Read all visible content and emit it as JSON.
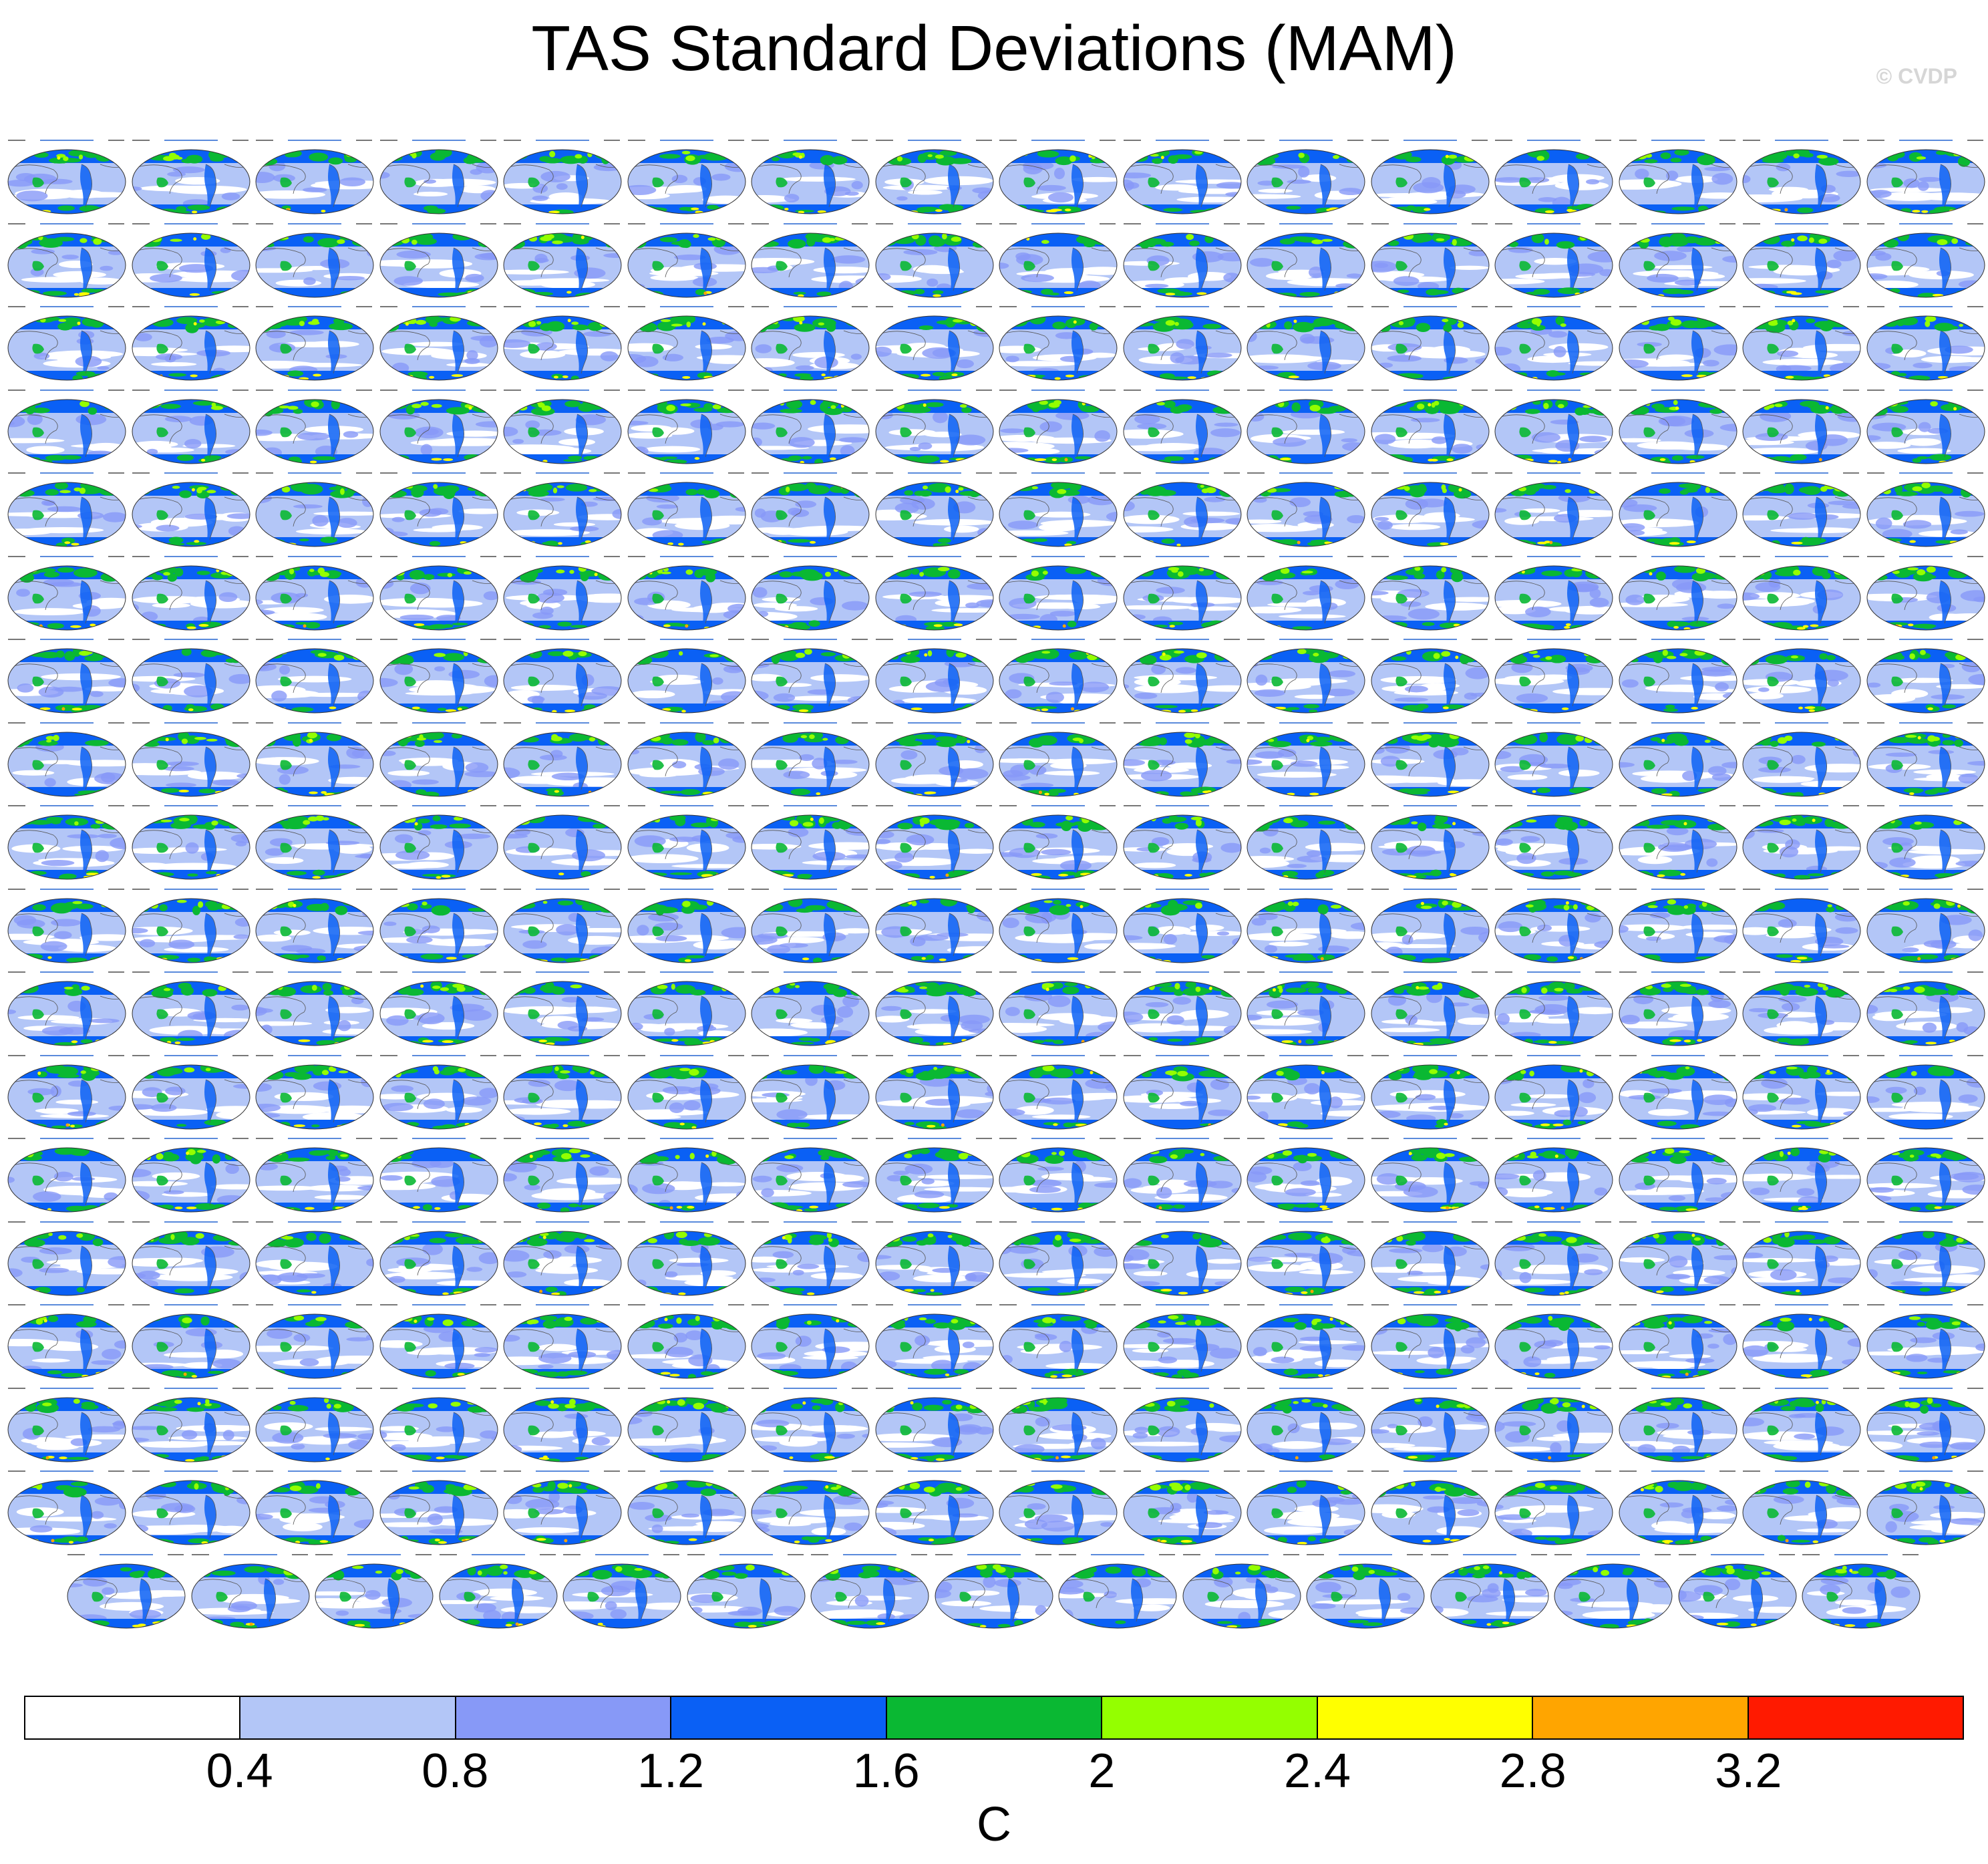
{
  "title": "TAS Standard Deviations (MAM)",
  "watermark": "© CVDP",
  "colorbar": {
    "unit_label": "C",
    "colors": [
      "#ffffff",
      "#b3c6f7",
      "#8799f7",
      "#0a60f5",
      "#0ab833",
      "#94ff00",
      "#ffff00",
      "#ffa500",
      "#ff1a00"
    ],
    "ticks": [
      "0.4",
      "0.8",
      "1.2",
      "1.6",
      "2",
      "2.4",
      "2.8",
      "3.2"
    ]
  },
  "panel_grid": {
    "full_rows": 17,
    "columns": 16,
    "last_row_count": 15,
    "map_palette": {
      "ocean_low": "#b3c6f7",
      "ocean_mid": "#8799f7",
      "blue": "#0a60f5",
      "green": "#0ab833",
      "lime": "#94ff00",
      "yellow": "#ffff00",
      "orange": "#ffa500",
      "red": "#ff1a00",
      "gap": "#ffffff",
      "coast": "#555555"
    }
  }
}
